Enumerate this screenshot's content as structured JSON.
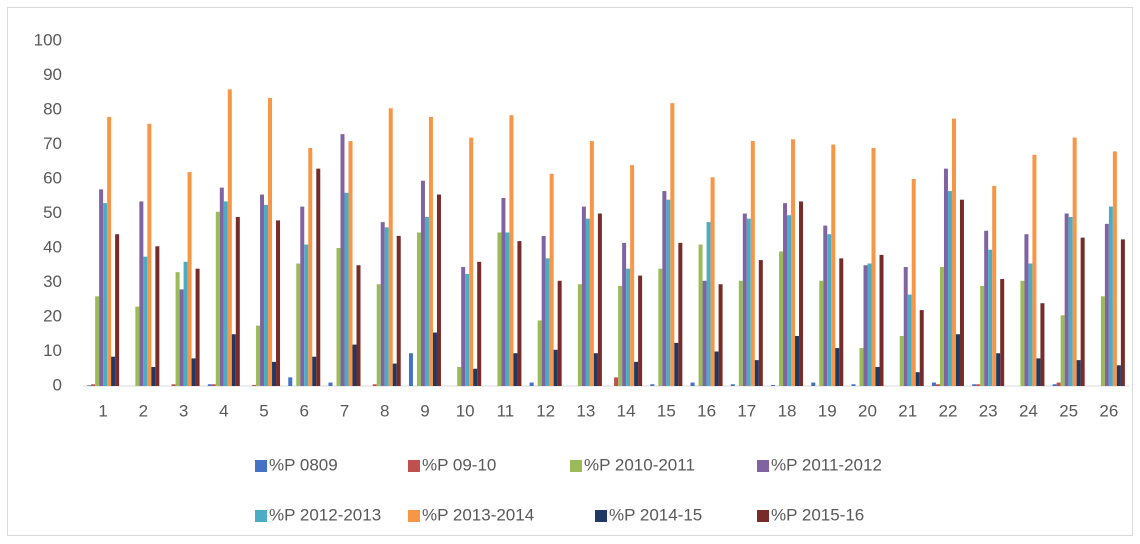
{
  "chart_data": {
    "type": "bar",
    "categories": [
      "1",
      "2",
      "3",
      "4",
      "5",
      "6",
      "7",
      "8",
      "9",
      "10",
      "11",
      "12",
      "13",
      "14",
      "15",
      "16",
      "17",
      "18",
      "19",
      "20",
      "21",
      "22",
      "23",
      "24",
      "25",
      "26"
    ],
    "series": [
      {
        "name": "%P 0809",
        "color": "#4472c4",
        "values": [
          0.2,
          0,
          0,
          0.5,
          0,
          2.5,
          1,
          0,
          9.5,
          0,
          0,
          1,
          0,
          0,
          0.5,
          1,
          0.5,
          0.3,
          1,
          0.5,
          0,
          1,
          0.5,
          0,
          0.5,
          0
        ]
      },
      {
        "name": "%P 09-10",
        "color": "#c0504d",
        "values": [
          0.5,
          0,
          0.5,
          0.5,
          0.3,
          0,
          0,
          0.5,
          0,
          0,
          0,
          0,
          0,
          2.5,
          0,
          0,
          0,
          0,
          0,
          0,
          0,
          0.5,
          0.5,
          0,
          1,
          0
        ]
      },
      {
        "name": "%P 2010-2011",
        "color": "#9bbb59",
        "values": [
          26,
          23,
          33,
          50.5,
          17.5,
          35.5,
          40,
          29.5,
          44.5,
          5.5,
          44.5,
          19,
          29.5,
          29,
          34,
          41,
          30.5,
          39,
          30.5,
          11,
          14.5,
          34.5,
          29,
          30.5,
          20.5,
          26
        ]
      },
      {
        "name": "%P 2011-2012",
        "color": "#8064a2",
        "values": [
          57,
          53.5,
          28,
          57.5,
          55.5,
          52,
          73,
          47.5,
          59.5,
          34.5,
          54.5,
          43.5,
          52,
          41.5,
          56.5,
          30.5,
          50,
          53,
          46.5,
          35,
          34.5,
          63,
          45,
          44,
          50,
          47
        ]
      },
      {
        "name": "%P 2012-2013",
        "color": "#4bacc6",
        "values": [
          53,
          37.5,
          36,
          53.5,
          52.5,
          41,
          56,
          46,
          49,
          32.5,
          44.5,
          37,
          48.5,
          34,
          54,
          47.5,
          48.5,
          49.5,
          44,
          35.5,
          26.5,
          56.5,
          39.5,
          35.5,
          49,
          52
        ]
      },
      {
        "name": "%P 2013-2014",
        "color": "#f79646",
        "values": [
          78,
          76,
          62,
          86,
          83.5,
          69,
          71,
          80.5,
          78,
          72,
          78.5,
          61.5,
          71,
          64,
          82,
          60.5,
          71,
          71.5,
          70,
          69,
          60,
          77.5,
          58,
          67,
          72,
          68
        ]
      },
      {
        "name": "%P 2014-15",
        "color": "#1f3864",
        "values": [
          8.5,
          5.5,
          8,
          15,
          7,
          8.5,
          12,
          6.5,
          15.5,
          5,
          9.5,
          10.5,
          9.5,
          7,
          12.5,
          10,
          7.5,
          14.5,
          11,
          5.5,
          4,
          15,
          9.5,
          8,
          7.5,
          6
        ]
      },
      {
        "name": "%P 2015-16",
        "color": "#772c2a",
        "values": [
          44,
          40.5,
          34,
          49,
          48,
          63,
          35,
          43.5,
          55.5,
          36,
          42,
          30.5,
          50,
          32,
          41.5,
          29.5,
          36.5,
          53.5,
          37,
          38,
          22,
          54,
          31,
          24,
          43,
          42.5
        ]
      }
    ],
    "ylim": [
      0,
      100
    ],
    "yticks": [
      0,
      10,
      20,
      30,
      40,
      50,
      60,
      70,
      80,
      90,
      100
    ],
    "grid": false,
    "legend": "bottom"
  }
}
